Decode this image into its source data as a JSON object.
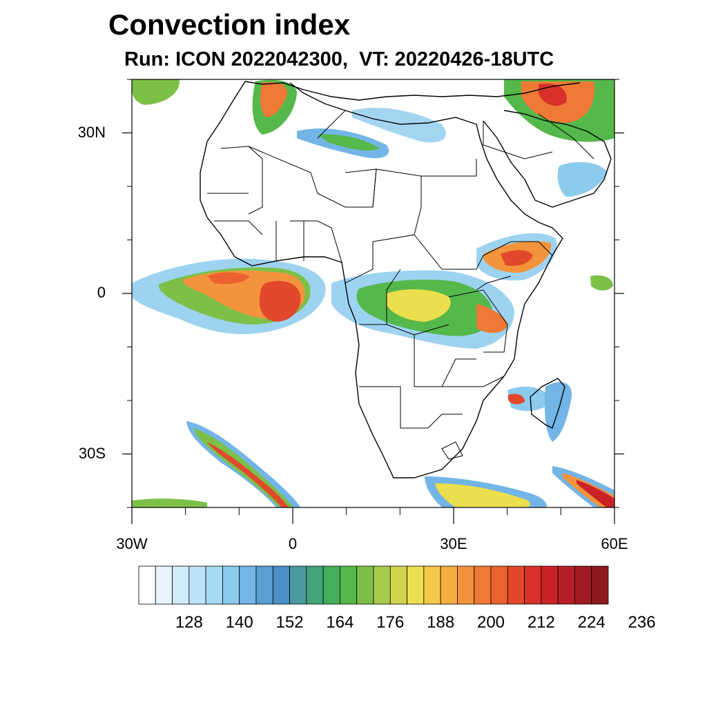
{
  "title": "Convection index",
  "subtitle": "Run: ICON 2022042300,  VT: 20220426-18UTC",
  "map": {
    "lon_range": [
      -30,
      60
    ],
    "lat_range": [
      -40,
      40
    ],
    "lat_ticks": [
      {
        "value": 30,
        "label": "30N"
      },
      {
        "value": 0,
        "label": "0"
      },
      {
        "value": -30,
        "label": "30S"
      }
    ],
    "lon_ticks": [
      {
        "value": -30,
        "label": "30W"
      },
      {
        "value": 0,
        "label": "0"
      },
      {
        "value": 30,
        "label": "30E"
      },
      {
        "value": 60,
        "label": "60E"
      }
    ],
    "minor_lat_ticks": [
      40,
      20,
      10,
      -10,
      -20,
      -40
    ],
    "minor_lon_ticks": [
      -20,
      -10,
      10,
      20,
      40,
      50
    ]
  },
  "colorbar": {
    "colors": [
      "#ffffff",
      "#e8f5fd",
      "#d2ebf9",
      "#bde3f7",
      "#a6dbf5",
      "#8ccbee",
      "#72b5e6",
      "#5a9fd6",
      "#4b8fc6",
      "#4a9aa0",
      "#44a47a",
      "#44ae5a",
      "#55b84a",
      "#7cc048",
      "#a8ca4a",
      "#cfd64c",
      "#ecdf4e",
      "#f6c84a",
      "#f5ad42",
      "#f3943c",
      "#ef7a35",
      "#eb6230",
      "#e2482c",
      "#d8302a",
      "#c92328",
      "#b51f25",
      "#a31b22",
      "#8e1a1e"
    ],
    "labels": [
      "128",
      "140",
      "152",
      "164",
      "176",
      "188",
      "200",
      "212",
      "224",
      "236"
    ]
  }
}
